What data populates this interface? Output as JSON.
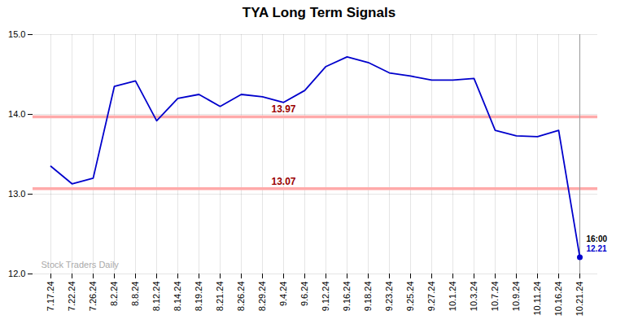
{
  "chart_data": {
    "type": "line",
    "title": "TYA Long Term Signals",
    "categories": [
      "7.17.24",
      "7.22.24",
      "7.26.24",
      "8.2.24",
      "8.8.24",
      "8.12.24",
      "8.14.24",
      "8.19.24",
      "8.21.24",
      "8.26.24",
      "8.29.24",
      "9.4.24",
      "9.6.24",
      "9.12.24",
      "9.16.24",
      "9.18.24",
      "9.23.24",
      "9.25.24",
      "9.27.24",
      "10.1.24",
      "10.3.24",
      "10.7.24",
      "10.9.24",
      "10.11.24",
      "10.16.24",
      "10.21.24"
    ],
    "values": [
      13.35,
      13.13,
      13.2,
      14.35,
      14.42,
      13.92,
      14.2,
      14.25,
      14.1,
      14.25,
      14.22,
      14.15,
      14.3,
      14.6,
      14.72,
      14.65,
      14.52,
      14.48,
      14.43,
      14.43,
      14.45,
      13.8,
      13.73,
      13.72,
      13.8,
      12.21
    ],
    "color": "#0000cc",
    "ylim": [
      12,
      15
    ],
    "yticks": [
      12,
      13,
      14,
      15
    ],
    "grid": true,
    "reference_lines": [
      {
        "value": 13.97,
        "label": "13.97",
        "color": "#ffaaaa",
        "label_color": "#990000"
      },
      {
        "value": 13.07,
        "label": "13.07",
        "color": "#ffaaaa",
        "label_color": "#990000"
      }
    ],
    "annotations": [
      {
        "text": "16:00",
        "color": "#000000"
      },
      {
        "text": "12.21",
        "color": "#0000cc"
      }
    ],
    "watermark": {
      "text": "Stock Traders Daily",
      "color": "#aaaaaa"
    }
  }
}
